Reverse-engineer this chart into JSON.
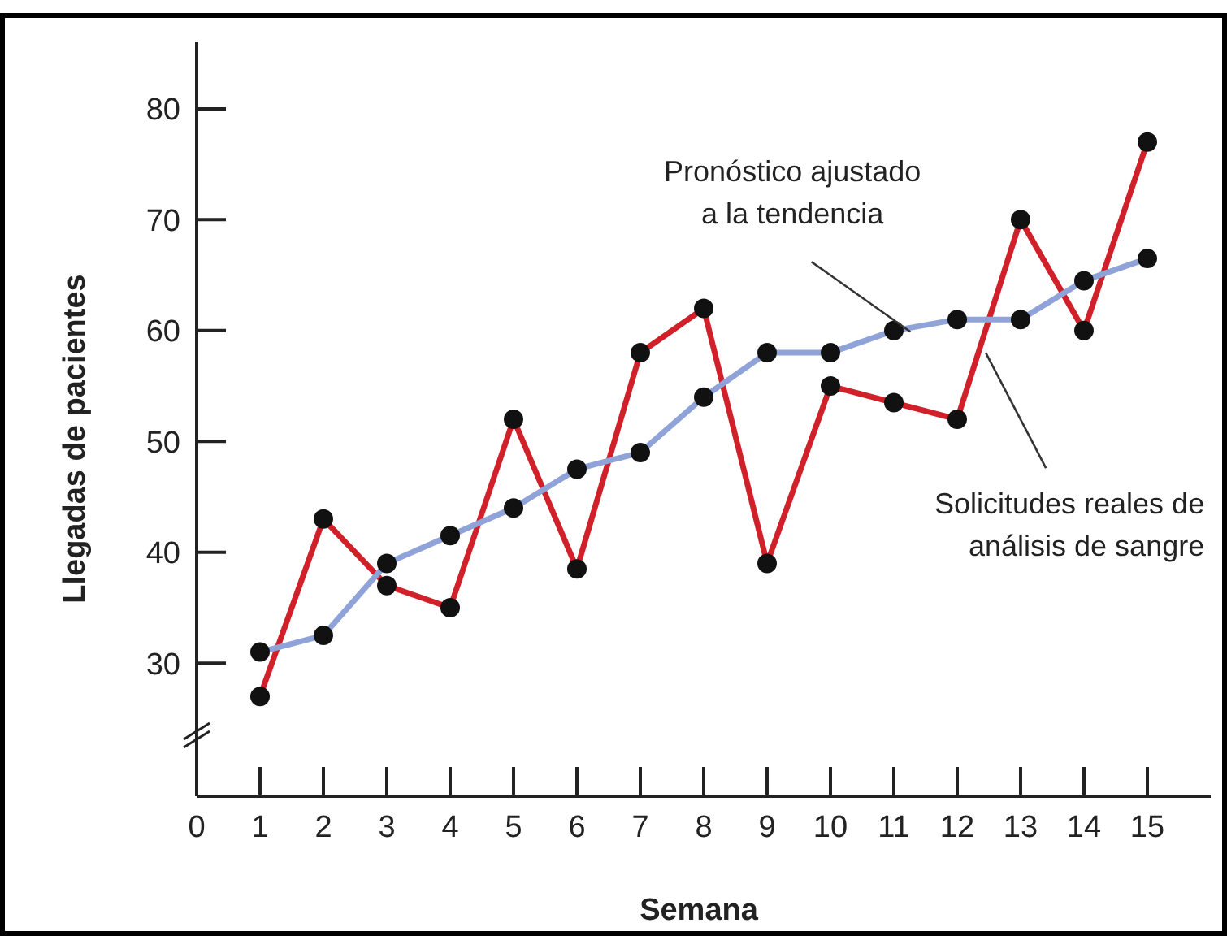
{
  "chart_data": {
    "type": "line",
    "xlabel": "Semana",
    "ylabel": "Llegadas de pacientes",
    "x": [
      1,
      2,
      3,
      4,
      5,
      6,
      7,
      8,
      9,
      10,
      11,
      12,
      13,
      14,
      15
    ],
    "series": [
      {
        "name": "Solicitudes reales de análisis de sangre",
        "color": "#d0202a",
        "values": [
          27,
          43,
          37,
          35,
          52,
          38.5,
          58,
          62,
          39,
          55,
          53.5,
          52,
          70,
          60,
          77
        ]
      },
      {
        "name": "Pronóstico ajustado a la tendencia",
        "color": "#8fa3d8",
        "values": [
          31,
          32.5,
          39,
          41.5,
          44,
          47.5,
          49,
          54,
          58,
          58,
          60,
          61,
          61,
          64.5,
          66.5
        ]
      }
    ],
    "xlim": [
      0,
      16
    ],
    "xticks": [
      0,
      1,
      2,
      3,
      4,
      5,
      6,
      7,
      8,
      9,
      10,
      11,
      12,
      13,
      14,
      15
    ],
    "ylim": [
      18,
      86
    ],
    "yticks": [
      30,
      40,
      50,
      60,
      70,
      80
    ],
    "marker": "circle",
    "line_style": "solid",
    "grid": false
  }
}
